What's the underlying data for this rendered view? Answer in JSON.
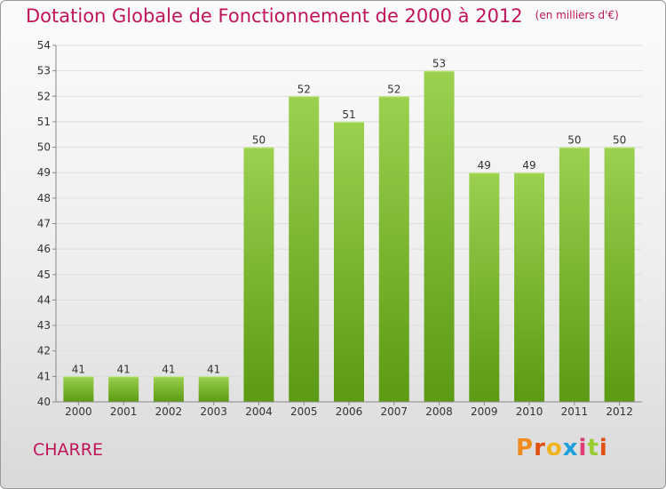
{
  "title": "Dotation Globale de Fonctionnement de 2000 à 2012",
  "unit": "(en milliers d'€)",
  "commune": "CHARRE",
  "logo": {
    "letters": [
      "P",
      "r",
      "o",
      "x",
      "i",
      "t",
      "i"
    ],
    "colors": [
      "#f08c1e",
      "#e05010",
      "#f0b41e",
      "#1ea0dc",
      "#e03c78",
      "#9acd32",
      "#e05010"
    ]
  },
  "colors": {
    "bar_light": "#9bd14f",
    "bar_dark": "#5b9a12",
    "axis": "#888888",
    "grid": "#dddddd",
    "title": "#c0145a"
  },
  "chart_data": {
    "type": "bar",
    "categories": [
      "2000",
      "2001",
      "2002",
      "2003",
      "2004",
      "2005",
      "2006",
      "2007",
      "2008",
      "2009",
      "2010",
      "2011",
      "2012"
    ],
    "values": [
      41,
      41,
      41,
      41,
      50,
      52,
      51,
      52,
      53,
      49,
      49,
      50,
      50
    ],
    "ylim": [
      40,
      54
    ],
    "yticks": [
      40,
      41,
      42,
      43,
      44,
      45,
      46,
      47,
      48,
      49,
      50,
      51,
      52,
      53,
      54
    ],
    "title": "Dotation Globale de Fonctionnement de 2000 à 2012",
    "xlabel": "",
    "ylabel": "",
    "grid": true,
    "data_labels": true
  }
}
